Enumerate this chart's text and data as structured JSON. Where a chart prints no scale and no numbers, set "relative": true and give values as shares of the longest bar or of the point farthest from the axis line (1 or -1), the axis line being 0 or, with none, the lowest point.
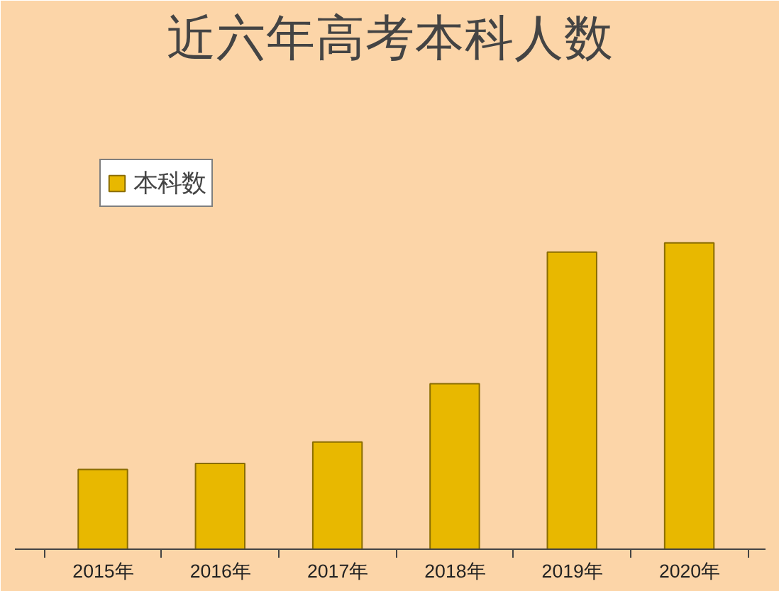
{
  "chart_data": {
    "type": "bar",
    "title": "近六年高考本科人数",
    "relative": true,
    "categories": [
      "2015年",
      "2016年",
      "2017年",
      "2018年",
      "2019年",
      "2020年"
    ],
    "series": [
      {
        "name": "本科数",
        "color": "#e8b800",
        "values": [
          0.26,
          0.28,
          0.35,
          0.54,
          0.97,
          1
        ]
      }
    ],
    "legend": "top left",
    "grid": false
  }
}
